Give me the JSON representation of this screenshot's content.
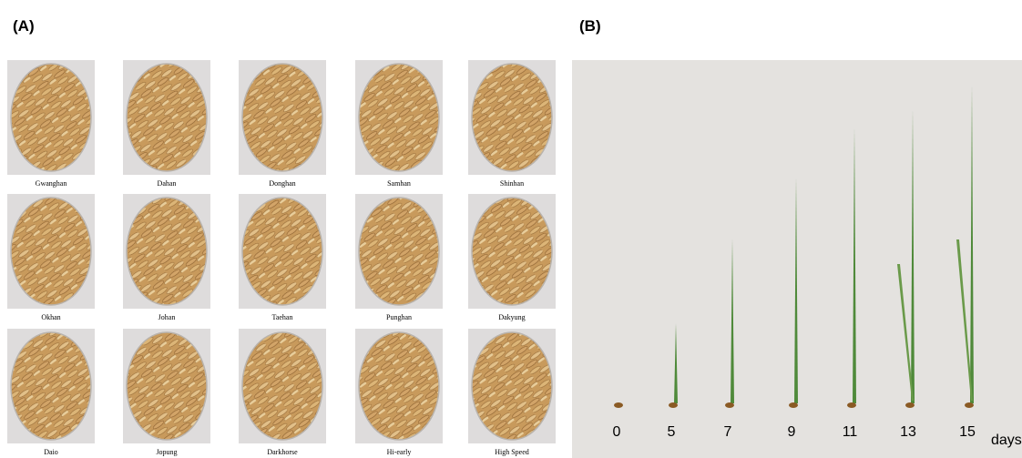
{
  "panels": [
    {
      "label": "(A)",
      "varieties": [
        "Gwanghan",
        "Dahan",
        "Donghan",
        "Samhan",
        "Shinhan",
        "Okhan",
        "Johan",
        "Taehan",
        "Punghan",
        "Dakyung",
        "Daio",
        "Jopung",
        "Darkhorse",
        "Hi-early",
        "High Speed"
      ]
    },
    {
      "label": "(B)",
      "days": [
        "0",
        "5",
        "7",
        "9",
        "11",
        "13",
        "15"
      ],
      "unit": "days"
    }
  ]
}
